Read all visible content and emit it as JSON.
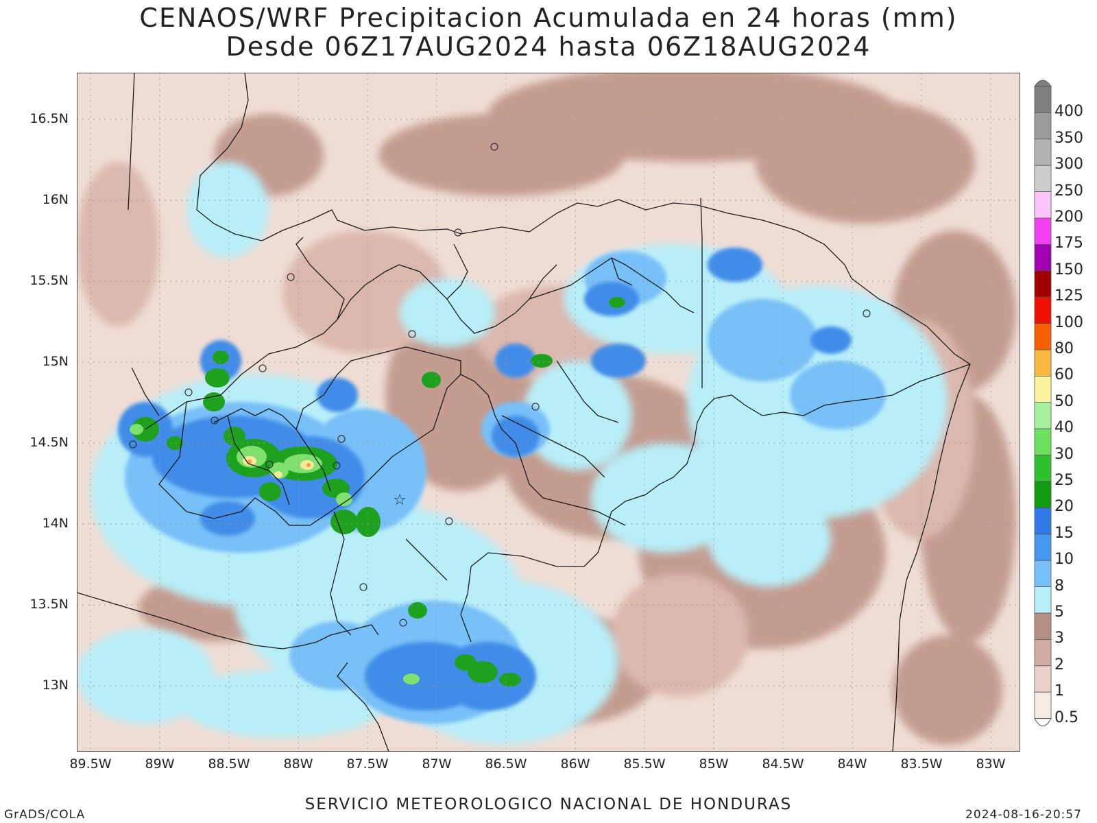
{
  "title": {
    "line1": "CENAOS/WRF Precipitacion Acumulada en 24 horas (mm)",
    "line2": "Desde 06Z17AUG2024 hasta 06Z18AUG2024"
  },
  "axes": {
    "lat_labels": [
      "16.5N",
      "16N",
      "15.5N",
      "15N",
      "14.5N",
      "14N",
      "13.5N",
      "13N"
    ],
    "lon_labels": [
      "89.5W",
      "89W",
      "88.5W",
      "88W",
      "87.5W",
      "87W",
      "86.5W",
      "86W",
      "85.5W",
      "85W",
      "84.5W",
      "84W",
      "83.5W",
      "83W"
    ]
  },
  "colorbar": {
    "labels": [
      "400",
      "350",
      "300",
      "250",
      "200",
      "175",
      "150",
      "125",
      "100",
      "80",
      "60",
      "50",
      "40",
      "30",
      "25",
      "20",
      "15",
      "10",
      "8",
      "5",
      "3",
      "2",
      "1",
      "0.5"
    ],
    "colors": [
      "#7f7f7f",
      "#9b9b9b",
      "#b3b3b3",
      "#cdcdcd",
      "#fcc6fc",
      "#f040f0",
      "#a000b0",
      "#a00000",
      "#f01000",
      "#f86000",
      "#f8b840",
      "#fcf4a0",
      "#a8f0a0",
      "#6ee060",
      "#30c030",
      "#139a13",
      "#2f78e6",
      "#4496ef",
      "#78c0f8",
      "#b8eef8",
      "#b88f84",
      "#d2aca2",
      "#ead2ca",
      "#f8eae4"
    ]
  },
  "footer": {
    "center": "SERVICIO METEOROLOGICO NACIONAL DE HONDURAS",
    "left": "GrADS/COLA",
    "right": "2024-08-16-20:57"
  }
}
